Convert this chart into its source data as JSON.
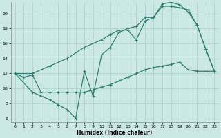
{
  "xlabel": "Humidex (Indice chaleur)",
  "bg_color": "#cce8e4",
  "line_color": "#2e7d72",
  "grid_color": "#aacfcb",
  "xlim": [
    -0.5,
    23.5
  ],
  "ylim": [
    5.5,
    21.5
  ],
  "yticks": [
    6,
    8,
    10,
    12,
    14,
    16,
    18,
    20
  ],
  "xticks": [
    0,
    1,
    2,
    3,
    4,
    5,
    6,
    7,
    8,
    9,
    10,
    11,
    12,
    13,
    14,
    15,
    16,
    17,
    18,
    19,
    20,
    21,
    22,
    23
  ],
  "line1_x": [
    0,
    1,
    2,
    3,
    4,
    5,
    6,
    7,
    8,
    9,
    10,
    11,
    12,
    13,
    14,
    15,
    16,
    17,
    18,
    19,
    20,
    21,
    22,
    23
  ],
  "line1_y": [
    12.0,
    11.5,
    11.8,
    9.5,
    9.5,
    9.5,
    9.5,
    9.5,
    9.5,
    9.8,
    10.2,
    10.5,
    11.0,
    11.5,
    12.0,
    12.5,
    12.8,
    13.0,
    13.2,
    13.5,
    12.5,
    12.3,
    12.3,
    12.3
  ],
  "line2_x": [
    0,
    2,
    4,
    6,
    8,
    10,
    11,
    12,
    13,
    14,
    15,
    16,
    17,
    18,
    19,
    20,
    21,
    22,
    23
  ],
  "line2_y": [
    12.0,
    12.0,
    13.0,
    14.0,
    15.5,
    16.5,
    17.2,
    17.8,
    17.8,
    16.5,
    19.0,
    19.5,
    21.0,
    21.0,
    20.8,
    20.5,
    18.5,
    15.3,
    12.3
  ],
  "line3_x": [
    0,
    2,
    3,
    4,
    5,
    6,
    7,
    8,
    9,
    10,
    11,
    12,
    13,
    14,
    15,
    16,
    17,
    18,
    19,
    20,
    21,
    22,
    23
  ],
  "line3_y": [
    12.0,
    9.5,
    9.0,
    8.5,
    7.8,
    7.2,
    6.0,
    12.3,
    9.0,
    14.5,
    15.5,
    17.5,
    18.0,
    18.3,
    19.5,
    19.5,
    21.3,
    21.5,
    21.2,
    20.2,
    18.5,
    15.3,
    12.3
  ],
  "markersize": 2.5,
  "linewidth": 0.9
}
